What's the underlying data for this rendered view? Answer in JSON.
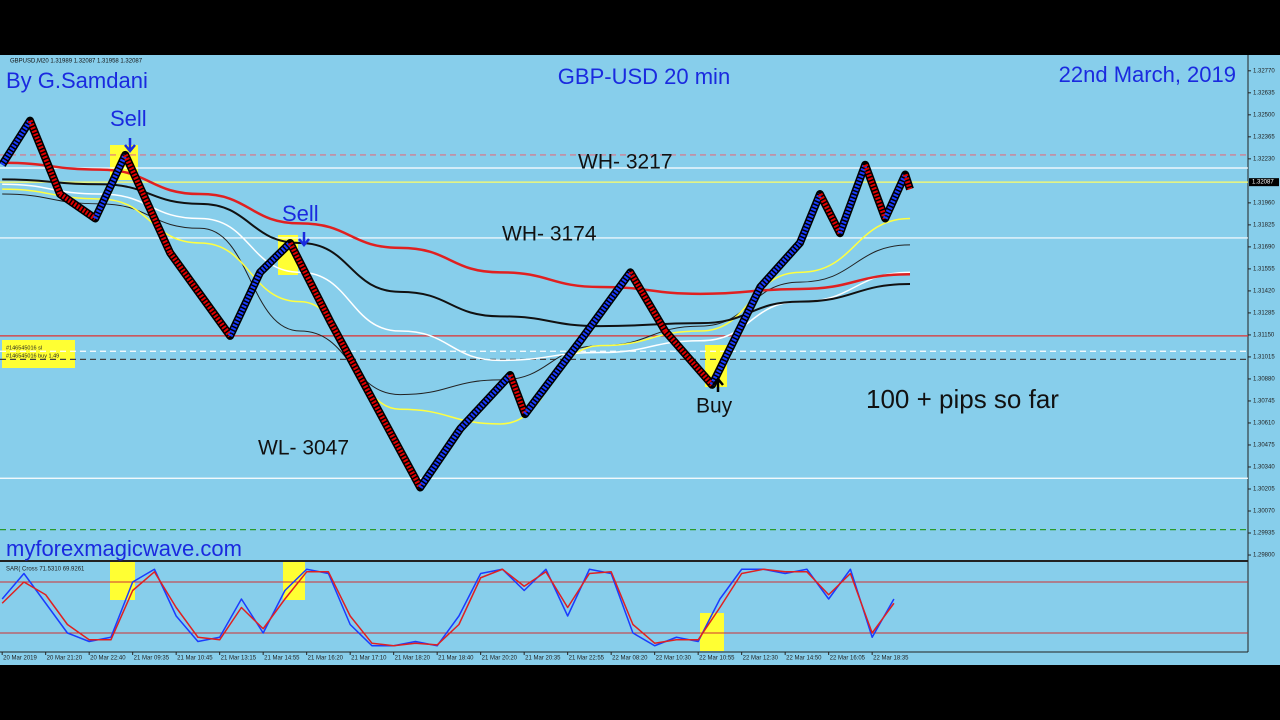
{
  "chart_data": {
    "type": "line",
    "title": "GBP-USD 20 min",
    "author": "By G.Samdani",
    "date": "22nd March, 2019",
    "header": "GBPUSD,M20 1.31989 1.32087 1.31958 1.32087",
    "website": "myforexmagicwave.com",
    "annotations": {
      "sell1": "Sell",
      "sell2": "Sell",
      "buy": "Buy",
      "wh1": "WH- 3217",
      "wh2": "WH- 3174",
      "wl": "WL- 3047",
      "pips": "100 + pips so far"
    },
    "orders": [
      "#146545016 sl",
      "#146545016 buy 1.49"
    ],
    "ylim": [
      1.29794,
      1.32824
    ],
    "yticks": [
      {
        "value": 1.3277,
        "label": "1.32770"
      },
      {
        "value": 1.32635,
        "label": "1.32635"
      },
      {
        "value": 1.325,
        "label": "1.32500"
      },
      {
        "value": 1.32365,
        "label": "1.32365"
      },
      {
        "value": 1.3223,
        "label": "1.32230"
      },
      {
        "value": 1.3196,
        "label": "1.31960"
      },
      {
        "value": 1.31825,
        "label": "1.31825"
      },
      {
        "value": 1.3169,
        "label": "1.31690"
      },
      {
        "value": 1.31555,
        "label": "1.31555"
      },
      {
        "value": 1.3142,
        "label": "1.31420"
      },
      {
        "value": 1.31285,
        "label": "1.31285"
      },
      {
        "value": 1.3115,
        "label": "1.31150"
      },
      {
        "value": 1.31015,
        "label": "1.31015"
      },
      {
        "value": 1.3088,
        "label": "1.30880"
      },
      {
        "value": 1.30745,
        "label": "1.30745"
      },
      {
        "value": 1.3061,
        "label": "1.30610"
      },
      {
        "value": 1.30475,
        "label": "1.30475"
      },
      {
        "value": 1.3034,
        "label": "1.30340"
      },
      {
        "value": 1.30205,
        "label": "1.30205"
      },
      {
        "value": 1.3007,
        "label": "1.30070"
      },
      {
        "value": 1.29935,
        "label": "1.29935"
      },
      {
        "value": 1.298,
        "label": "1.29800"
      }
    ],
    "price_tag": {
      "value": 1.32087,
      "label": "1.32087"
    },
    "xlim": [
      -0.05,
      28.64
    ],
    "xticks": [
      {
        "value": 0,
        "label": "20 Mar 2019"
      },
      {
        "value": 1,
        "label": "20 Mar 21:20"
      },
      {
        "value": 2,
        "label": "20 Mar 22:40"
      },
      {
        "value": 3,
        "label": "21 Mar 09:35"
      },
      {
        "value": 4,
        "label": "21 Mar 10:45"
      },
      {
        "value": 5,
        "label": "21 Mar 13:15"
      },
      {
        "value": 6,
        "label": "21 Mar 14:55"
      },
      {
        "value": 7,
        "label": "21 Mar 16:20"
      },
      {
        "value": 8,
        "label": "21 Mar 17:10"
      },
      {
        "value": 9,
        "label": "21 Mar 18:20"
      },
      {
        "value": 10,
        "label": "21 Mar 18:40"
      },
      {
        "value": 11,
        "label": "21 Mar 20:20"
      },
      {
        "value": 12,
        "label": "21 Mar 20:35"
      },
      {
        "value": 13,
        "label": "21 Mar 22:55"
      },
      {
        "value": 14,
        "label": "22 Mar 08:20"
      },
      {
        "value": 15,
        "label": "22 Mar 10:30"
      },
      {
        "value": 16,
        "label": "22 Mar 10:55"
      },
      {
        "value": 17,
        "label": "22 Mar 12:30"
      },
      {
        "value": 18,
        "label": "22 Mar 14:50"
      },
      {
        "value": 19,
        "label": "22 Mar 16:05"
      },
      {
        "value": 20,
        "label": "22 Mar 18:35"
      }
    ],
    "levels": [
      {
        "value": 1.32254,
        "color": "#e07080",
        "dash": true
      },
      {
        "value": 1.32174,
        "color": "#ffffff",
        "dash": false
      },
      {
        "value": 1.32087,
        "color": "#ffff66",
        "dash": false
      },
      {
        "value": 1.31745,
        "color": "#ffffff",
        "dash": false
      },
      {
        "value": 1.31144,
        "color": "#e03030",
        "dash": false
      },
      {
        "value": 1.3105,
        "color": "#ffffff",
        "dash": true
      },
      {
        "value": 1.31,
        "color": "#404040",
        "dash": true
      },
      {
        "value": 1.30271,
        "color": "#ffffff",
        "dash": false
      },
      {
        "value": 1.29956,
        "color": "#2a9a2a",
        "dash": true
      }
    ],
    "series": [
      {
        "color": "#1a3cff",
        "down_color": "#e00000",
        "width": 5,
        "x": [
          0,
          0.64,
          1.33,
          2.14,
          2.83,
          3.86,
          5.24,
          5.93,
          6.62,
          7.54,
          9.61,
          10.53,
          11.68,
          12.02,
          13.29,
          14.44,
          15.24,
          16.32,
          17.43,
          18.34,
          18.8,
          19.26,
          19.84,
          20.3,
          20.76,
          20.87
        ],
        "values": [
          1.32194,
          1.32464,
          1.32014,
          1.31864,
          1.32254,
          1.31654,
          1.31144,
          1.31534,
          1.31714,
          1.31234,
          1.30214,
          1.30574,
          1.30904,
          1.30664,
          1.31114,
          1.31534,
          1.31174,
          1.30844,
          1.31444,
          1.31714,
          1.32014,
          1.31774,
          1.32194,
          1.31864,
          1.32134,
          1.32044
        ]
      },
      {
        "color": "#e02020",
        "width": 2.5,
        "x": [
          0,
          2.25,
          4.55,
          6.85,
          9.15,
          11.45,
          13.75,
          16.05,
          18.34,
          20.87
        ],
        "values": [
          1.32206,
          1.32164,
          1.32014,
          1.31834,
          1.31684,
          1.31534,
          1.31444,
          1.31402,
          1.31432,
          1.31522
        ]
      },
      {
        "color": "#111111",
        "width": 2,
        "x": [
          0,
          2.25,
          4.55,
          6.85,
          9.15,
          11.45,
          13.75,
          16.05,
          18.34,
          20.87
        ],
        "values": [
          1.32104,
          1.32074,
          1.31954,
          1.31714,
          1.31414,
          1.31264,
          1.31204,
          1.31222,
          1.31354,
          1.31462
        ]
      },
      {
        "color": "#ffffff",
        "width": 1.5,
        "x": [
          0,
          2.25,
          4.55,
          6.85,
          9.15,
          11.45,
          13.75,
          16.05,
          18.34,
          20.87
        ],
        "values": [
          1.32074,
          1.32014,
          1.31864,
          1.31534,
          1.31174,
          1.30994,
          1.31042,
          1.31114,
          1.31354,
          1.31534
        ]
      },
      {
        "color": "#ffff40",
        "width": 1.5,
        "x": [
          0,
          2.25,
          4.55,
          6.85,
          9.15,
          11.45,
          13.75,
          16.05,
          18.34,
          20.87
        ],
        "values": [
          1.32044,
          1.31984,
          1.31714,
          1.31354,
          1.30694,
          1.30604,
          1.31084,
          1.31174,
          1.31534,
          1.31864
        ]
      },
      {
        "color": "#222222",
        "width": 1,
        "x": [
          0,
          2.25,
          4.55,
          6.85,
          9.15,
          11.45,
          13.75,
          16.05,
          18.34,
          20.87
        ],
        "values": [
          1.32014,
          1.31954,
          1.31804,
          1.31174,
          1.30784,
          1.30874,
          1.31084,
          1.31204,
          1.31474,
          1.31702
        ]
      }
    ],
    "sub": {
      "title": "SAR( Cross 71.5310 69.9261",
      "ylim": [
        0,
        100
      ],
      "levels": [
        80,
        20
      ],
      "x": [
        0,
        0.5,
        1,
        1.5,
        2,
        2.5,
        3,
        3.5,
        4,
        4.5,
        5,
        5.5,
        6,
        6.5,
        7,
        7.5,
        8,
        8.5,
        9,
        9.5,
        10,
        10.5,
        11,
        11.5,
        12,
        12.5,
        13,
        13.5,
        14,
        14.5,
        15,
        15.5,
        16,
        16.5,
        17,
        17.5,
        18,
        18.5,
        19,
        19.5,
        20,
        20.5
      ],
      "series": [
        {
          "color": "#1a3cff",
          "values": [
            60,
            90,
            55,
            20,
            10,
            15,
            80,
            95,
            40,
            10,
            15,
            60,
            20,
            70,
            95,
            90,
            30,
            5,
            5,
            10,
            5,
            40,
            90,
            95,
            70,
            95,
            40,
            95,
            90,
            20,
            5,
            15,
            10,
            60,
            95,
            95,
            90,
            95,
            60,
            95,
            15,
            60
          ]
        },
        {
          "color": "#e02020",
          "values": [
            55,
            80,
            65,
            30,
            12,
            12,
            70,
            92,
            50,
            15,
            12,
            50,
            25,
            60,
            92,
            92,
            40,
            8,
            5,
            8,
            6,
            30,
            85,
            95,
            75,
            92,
            50,
            90,
            92,
            30,
            8,
            12,
            12,
            50,
            90,
            95,
            92,
            92,
            65,
            90,
            20,
            55
          ]
        }
      ]
    }
  }
}
